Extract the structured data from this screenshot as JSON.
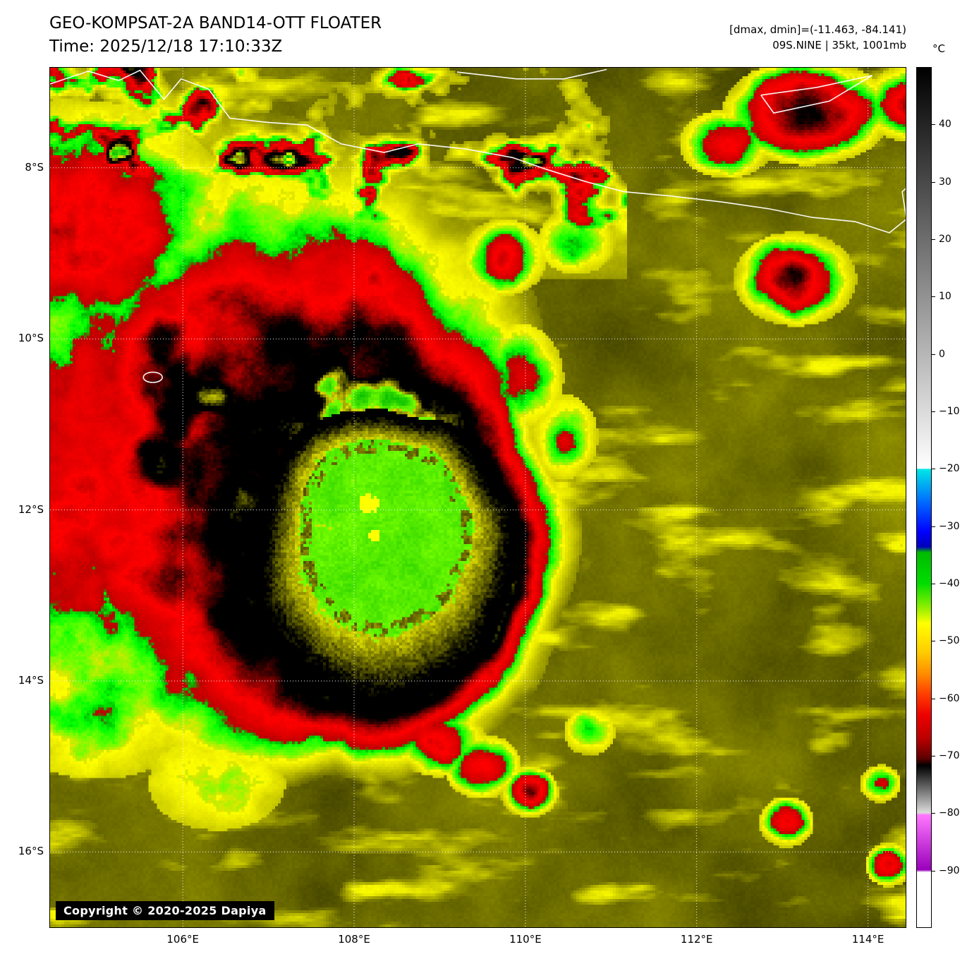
{
  "header": {
    "title": "GEO-KOMPSAT-2A BAND14-OTT FLOATER",
    "time_line": "Time: 2025/12/18 17:10:33Z",
    "dminmax_line": "[dmax, dmin]=(-11.463, -84.141)",
    "storm_line": "09S.NINE | 35kt, 1001mb"
  },
  "map": {
    "lat_tick_labels": [
      "8°S",
      "10°S",
      "12°S",
      "14°S",
      "16°S"
    ],
    "lon_tick_labels": [
      "106°E",
      "108°E",
      "110°E",
      "112°E",
      "114°E"
    ],
    "copyright": "Copyright © 2020-2025 Dapiya"
  },
  "colorbar": {
    "unit_label": "°C",
    "tick_labels": [
      "40",
      "30",
      "20",
      "10",
      "0",
      "−10",
      "−20",
      "−30",
      "−40",
      "−50",
      "−60",
      "−70",
      "−80",
      "−90"
    ],
    "stops": [
      [
        50,
        "#000000"
      ],
      [
        -19.9,
        "#ffffff"
      ],
      [
        -20.1,
        "#00e6e6"
      ],
      [
        -26,
        "#0066ff"
      ],
      [
        -31,
        "#0000ff"
      ],
      [
        -33.6,
        "#0000bb"
      ],
      [
        -34.6,
        "#00bb00"
      ],
      [
        -40,
        "#00dd00"
      ],
      [
        -44,
        "#88ee00"
      ],
      [
        -47,
        "#ffff00"
      ],
      [
        -52,
        "#ffcc00"
      ],
      [
        -56,
        "#ff8800"
      ],
      [
        -59,
        "#ff4400"
      ],
      [
        -63,
        "#ee0000"
      ],
      [
        -67,
        "#bb0000"
      ],
      [
        -70.5,
        "#5e0000"
      ],
      [
        -71.8,
        "#000000"
      ],
      [
        -80,
        "#dcdcdc"
      ],
      [
        -80.4,
        "#ff78ff"
      ],
      [
        -90,
        "#9900bb"
      ],
      [
        -90.4,
        "#ffffff"
      ],
      [
        -100,
        "#ffffff"
      ]
    ]
  }
}
